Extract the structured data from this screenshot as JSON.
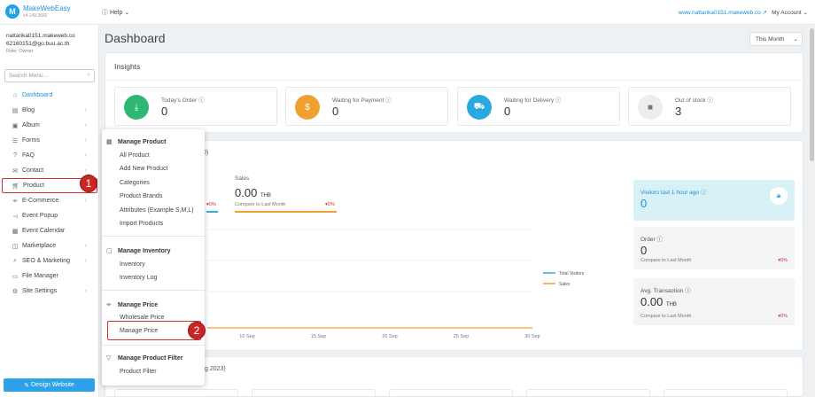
{
  "brand": {
    "name": "MakeWebEasy",
    "version": "v4.149.3682",
    "logo_letter": "M"
  },
  "topbar": {
    "help": "Help",
    "site_link": "www.nattarika0151.makeweb.co",
    "account": "My Account"
  },
  "user": {
    "site": "nattarika0151.makeweb.co",
    "email": "62160151@go.buu.ac.th",
    "role": "Role: Owner"
  },
  "search": {
    "placeholder": "Search Menu..."
  },
  "menu": {
    "dashboard": "Dashboard",
    "blog": "Blog",
    "album": "Album",
    "forms": "Forms",
    "faq": "FAQ",
    "contact": "Contact",
    "product": "Product",
    "ecommerce": "E-Commerce",
    "event_popup": "Event Popup",
    "event_calendar": "Event Calendar",
    "marketplace": "Marketplace",
    "seo": "SEO & Marketing",
    "file_manager": "File Manager",
    "site_settings": "Site Settings"
  },
  "design_button": "Design Website",
  "page": {
    "title": "Dashboard",
    "period": "This Month"
  },
  "insights": {
    "title": "Insights",
    "cards": [
      {
        "label": "Today's Order",
        "value": "0",
        "color": "#2eb873"
      },
      {
        "label": "Waiting for Payment",
        "value": "0",
        "color": "#f0a030"
      },
      {
        "label": "Waiting for Delivery",
        "value": "0",
        "color": "#29a9e0"
      },
      {
        "label": "Out of stock",
        "value": "3",
        "color": "#9aa0a6"
      }
    ]
  },
  "analytics": {
    "header_fragment": "0)",
    "visitors_pct": "0%",
    "sales_label": "Sales",
    "sales_value": "0.00",
    "sales_unit": "THB",
    "sales_compare": "Compare to Last Month",
    "sales_pct": "0%"
  },
  "chart_data": {
    "type": "line",
    "x": [
      "10 Sep",
      "15 Sep",
      "20 Sep",
      "25 Sep",
      "30 Sep"
    ],
    "series": [
      {
        "name": "Total Visitors",
        "color": "#33aadd",
        "values": [
          0,
          0,
          0,
          0,
          0
        ]
      },
      {
        "name": "Sales",
        "color": "#f0a030",
        "values": [
          0,
          0,
          0,
          0,
          0
        ]
      }
    ],
    "legend": "right"
  },
  "stats": [
    {
      "title": "Visitors last 1 hour ago",
      "value": "0"
    },
    {
      "title": "Order",
      "value": "0",
      "compare": "Compare to Last Month",
      "pct": "0%"
    },
    {
      "title": "Avg. Transaction",
      "value": "0.00",
      "unit": "THB",
      "compare": "Compare to Last Month",
      "pct": "0%"
    }
  ],
  "bottom": {
    "header_fragment": "g 2023)"
  },
  "flyout": {
    "manage_product": "Manage Product",
    "all_product": "All Product",
    "add_new_product": "Add New Product",
    "categories": "Categories",
    "product_brands": "Product Brands",
    "attributes": "Attributes (Example S,M,L)",
    "import_products": "Import Products",
    "manage_inventory": "Manage Inventory",
    "inventory": "Inventory",
    "inventory_log": "Inventory Log",
    "manage_price": "Manage Price",
    "wholesale_price": "Wholesale Price",
    "manage_price_item": "Manage Price",
    "manage_filter": "Manage Product Filter",
    "product_filter": "Product Filter"
  },
  "callouts": {
    "one": "1",
    "two": "2"
  }
}
